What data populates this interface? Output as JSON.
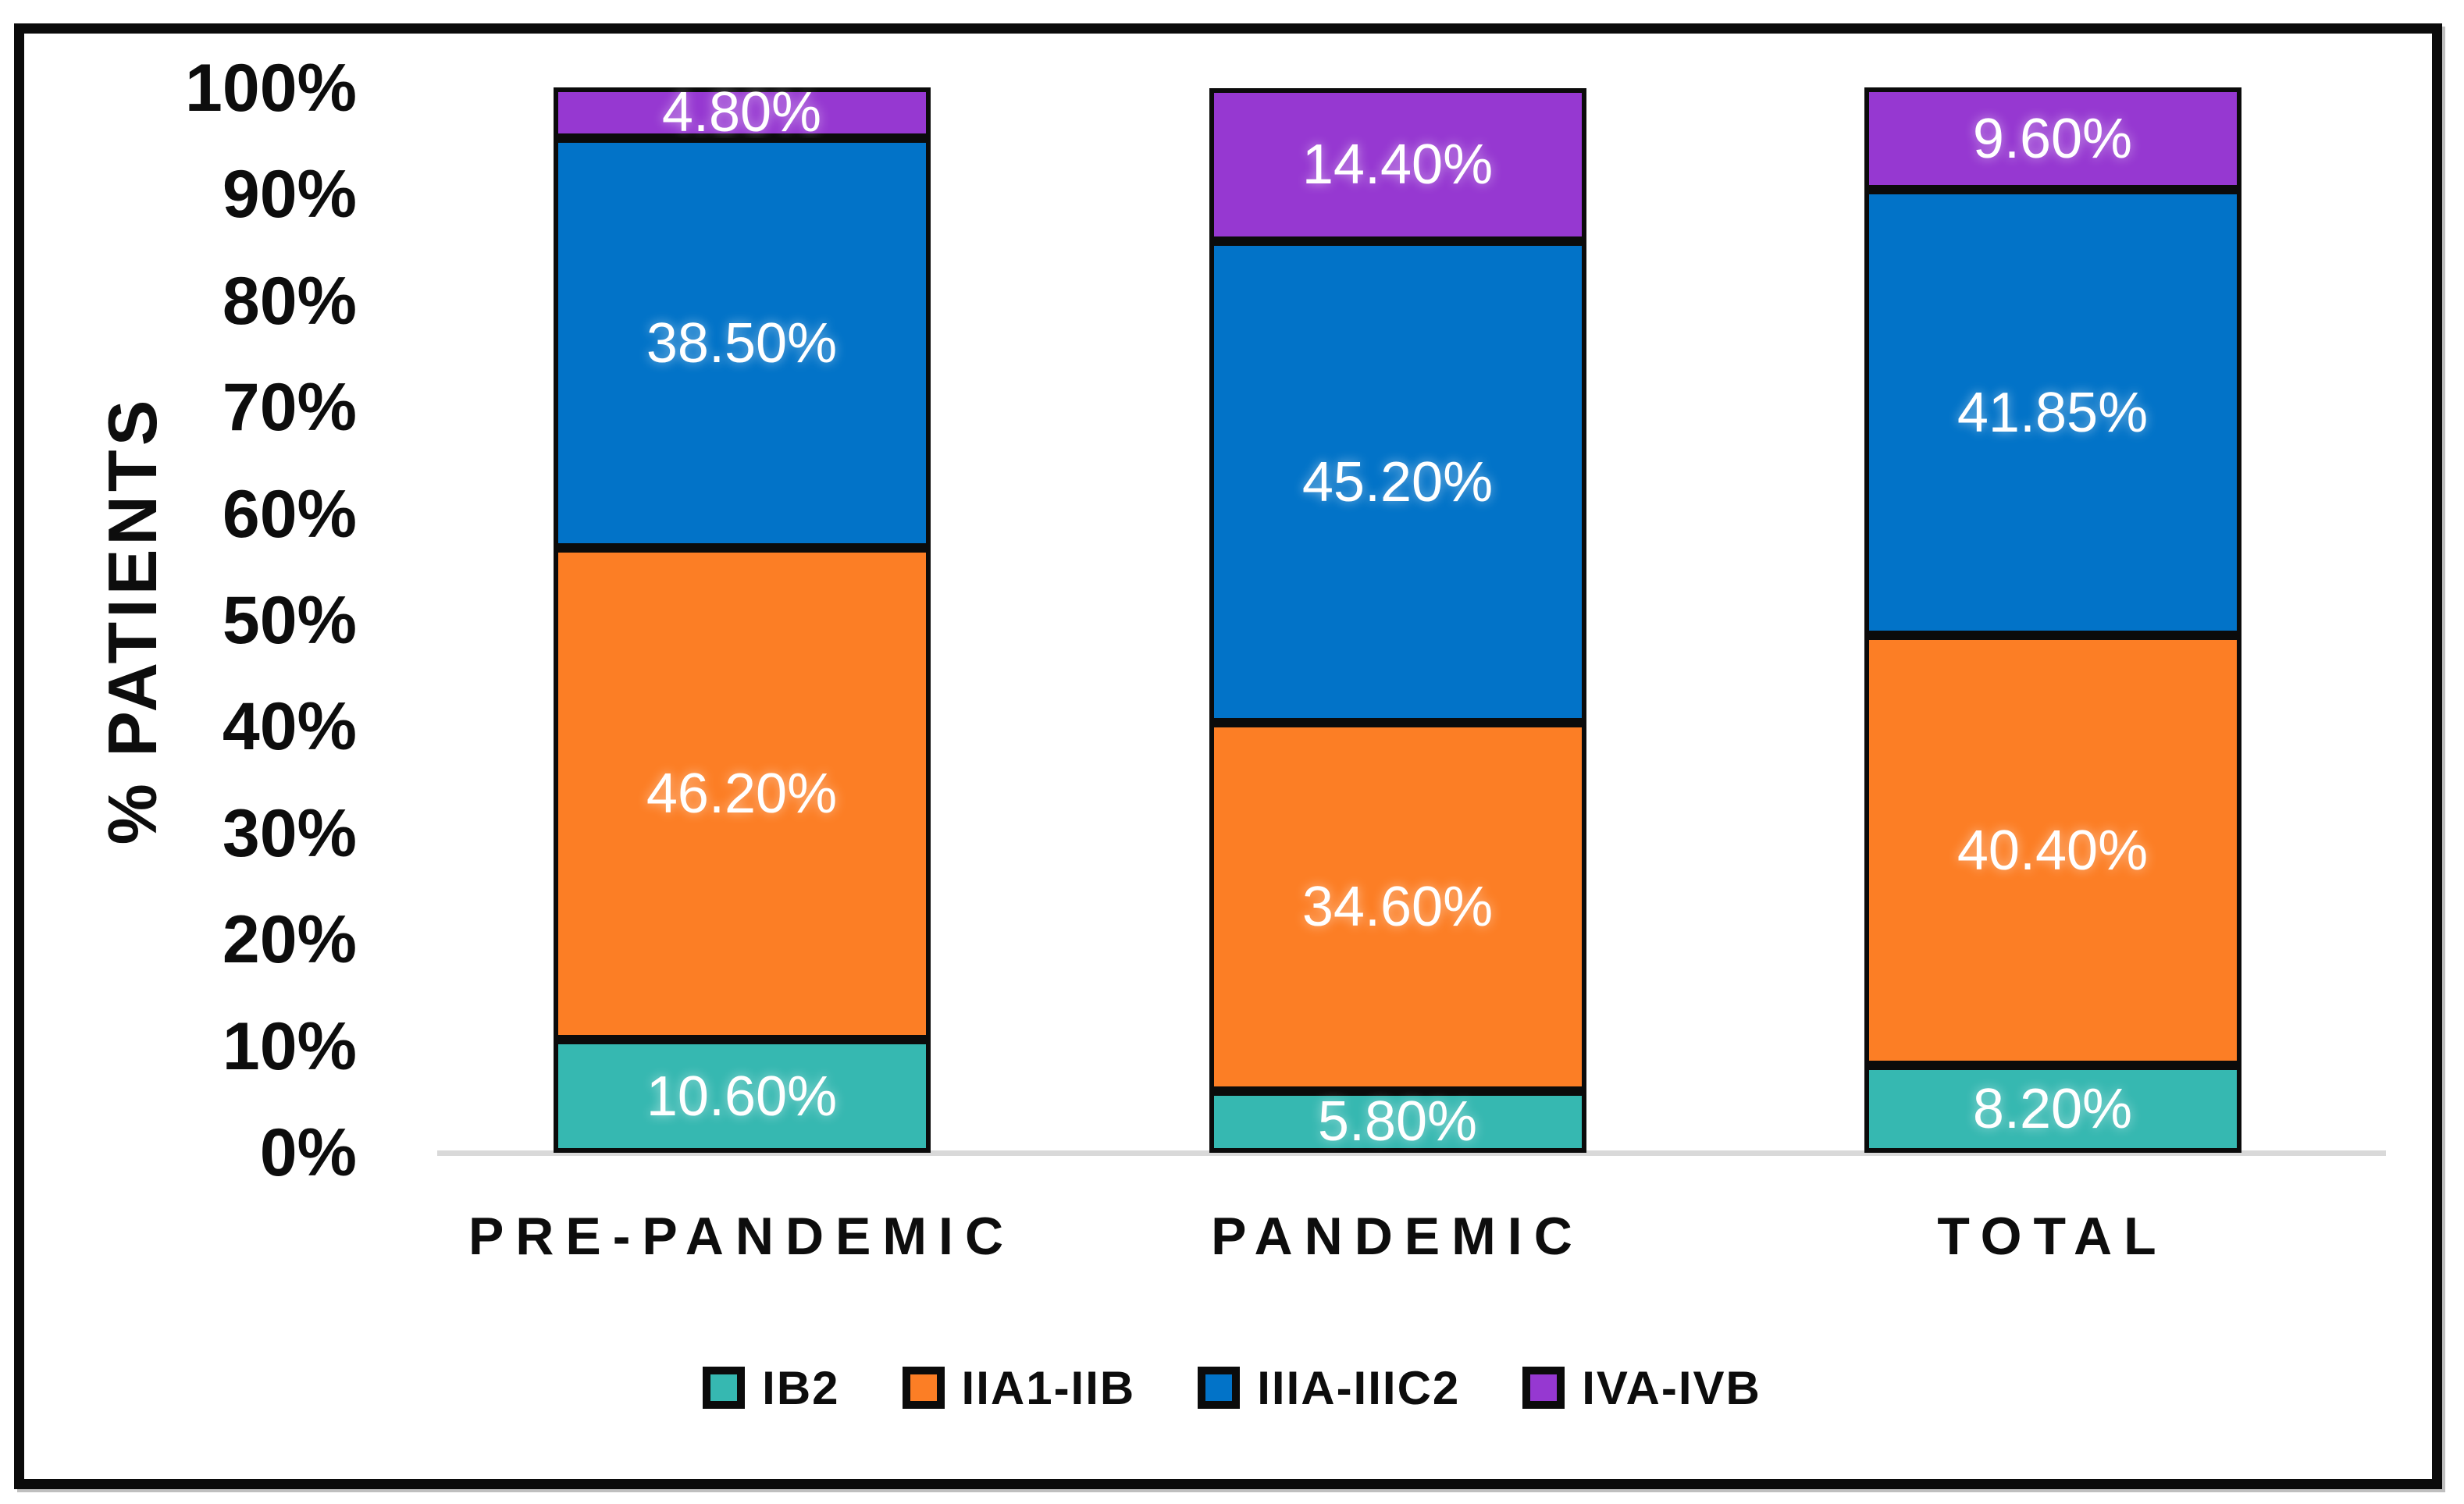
{
  "figure": {
    "background": "#ffffff",
    "frame_border_color": "#0b0b0b",
    "axis_line_color": "#d9d9d9",
    "tick_text_color": "#0d0d0d",
    "data_label_text_color": "#ffffff"
  },
  "chart_data": {
    "type": "bar",
    "variant": "stacked-100",
    "title": "",
    "xlabel": "",
    "ylabel": "% PATIENTS",
    "categories": [
      "PRE-PANDEMIC",
      "PANDEMIC",
      "TOTAL"
    ],
    "series": [
      {
        "name": "IB2",
        "color": "#36b8b1",
        "values": [
          10.6,
          5.8,
          8.2
        ],
        "labels": [
          "10.60%",
          "5.80%",
          "8.20%"
        ]
      },
      {
        "name": "IIA1-IIB",
        "color": "#fc7e25",
        "values": [
          46.2,
          34.6,
          40.4
        ],
        "labels": [
          "46.20%",
          "34.60%",
          "40.40%"
        ]
      },
      {
        "name": "IIIA-IIIC2",
        "color": "#0273c8",
        "values": [
          38.5,
          45.2,
          41.85
        ],
        "labels": [
          "38.50%",
          "45.20%",
          "41.85%"
        ]
      },
      {
        "name": "IVA-IVB",
        "color": "#9638d1",
        "values": [
          4.8,
          14.4,
          9.6
        ],
        "labels": [
          "4.80%",
          "14.40%",
          "9.60%"
        ]
      }
    ],
    "yticks": [
      "0%",
      "10%",
      "20%",
      "30%",
      "40%",
      "50%",
      "60%",
      "70%",
      "80%",
      "90%",
      "100%"
    ],
    "ylim": [
      0,
      100
    ],
    "grid": false,
    "legend_position": "bottom",
    "legend": [
      "IB2",
      "IIA1-IIB",
      "IIIA-IIIC2",
      "IVA-IVB"
    ]
  }
}
